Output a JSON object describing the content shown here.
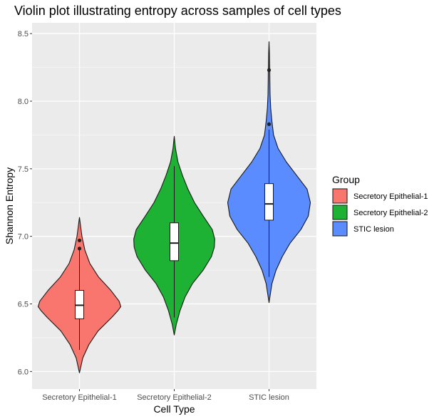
{
  "chart_data": {
    "type": "violin",
    "title": "Violin plot illustrating entropy across samples of cell types",
    "xlabel": "Cell Type",
    "ylabel": "Shannon Entropy",
    "ylim": [
      5.87,
      8.58
    ],
    "y_ticks": [
      6.0,
      6.5,
      7.0,
      7.5,
      8.0,
      8.5
    ],
    "categories": [
      "Secretory Epithelial-1",
      "Secretory Epithelial-2",
      "STIC lesion"
    ],
    "grid": true,
    "legend": {
      "title": "Group",
      "placement": "right",
      "entries": [
        "Secretory Epithelial-1",
        "Secretory Epithelial-2",
        "STIC lesion"
      ]
    },
    "series": [
      {
        "name": "Secretory Epithelial-1",
        "color": "#f8766d",
        "range": [
          5.99,
          7.14
        ],
        "density": [
          [
            5.99,
            0.0
          ],
          [
            6.1,
            0.08
          ],
          [
            6.2,
            0.23
          ],
          [
            6.3,
            0.45
          ],
          [
            6.4,
            0.78
          ],
          [
            6.45,
            0.93
          ],
          [
            6.48,
            1.0
          ],
          [
            6.52,
            0.96
          ],
          [
            6.6,
            0.76
          ],
          [
            6.7,
            0.46
          ],
          [
            6.8,
            0.25
          ],
          [
            6.9,
            0.13
          ],
          [
            7.0,
            0.06
          ],
          [
            7.07,
            0.03
          ],
          [
            7.14,
            0.0
          ]
        ],
        "box": {
          "q1": 6.39,
          "median": 6.49,
          "q3": 6.6,
          "whisker_low": 6.16,
          "whisker_high": 6.9
        },
        "outliers": [
          6.91,
          6.97
        ]
      },
      {
        "name": "Secretory Epithelial-2",
        "color": "#1db233",
        "range": [
          6.27,
          7.74
        ],
        "density": [
          [
            6.27,
            0.0
          ],
          [
            6.35,
            0.05
          ],
          [
            6.45,
            0.14
          ],
          [
            6.55,
            0.26
          ],
          [
            6.65,
            0.44
          ],
          [
            6.75,
            0.7
          ],
          [
            6.85,
            0.9
          ],
          [
            6.92,
            0.97
          ],
          [
            6.98,
            0.98
          ],
          [
            7.05,
            0.92
          ],
          [
            7.15,
            0.7
          ],
          [
            7.25,
            0.49
          ],
          [
            7.35,
            0.33
          ],
          [
            7.45,
            0.2
          ],
          [
            7.55,
            0.09
          ],
          [
            7.65,
            0.03
          ],
          [
            7.74,
            0.0
          ]
        ],
        "box": {
          "q1": 6.82,
          "median": 6.95,
          "q3": 7.1,
          "whisker_low": 6.4,
          "whisker_high": 7.52
        },
        "outliers": []
      },
      {
        "name": "STIC lesion",
        "color": "#5a8bff",
        "range": [
          6.51,
          8.44
        ],
        "density": [
          [
            6.51,
            0.0
          ],
          [
            6.65,
            0.07
          ],
          [
            6.75,
            0.17
          ],
          [
            6.85,
            0.32
          ],
          [
            6.95,
            0.51
          ],
          [
            7.05,
            0.77
          ],
          [
            7.15,
            0.95
          ],
          [
            7.25,
            1.0
          ],
          [
            7.35,
            0.92
          ],
          [
            7.45,
            0.67
          ],
          [
            7.55,
            0.42
          ],
          [
            7.65,
            0.22
          ],
          [
            7.75,
            0.11
          ],
          [
            7.85,
            0.07
          ],
          [
            7.95,
            0.04
          ],
          [
            8.05,
            0.025
          ],
          [
            8.15,
            0.02
          ],
          [
            8.25,
            0.017
          ],
          [
            8.35,
            0.01
          ],
          [
            8.44,
            0.0
          ]
        ],
        "box": {
          "q1": 7.12,
          "median": 7.24,
          "q3": 7.39,
          "whisker_low": 6.7,
          "whisker_high": 7.79
        },
        "outliers": [
          7.83,
          8.23
        ]
      }
    ]
  }
}
